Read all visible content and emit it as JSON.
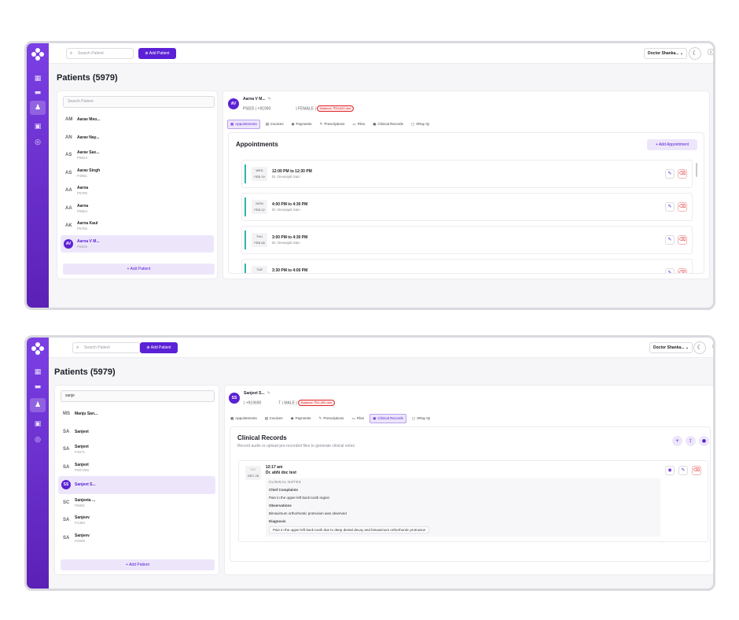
{
  "topbar": {
    "search_placeholder": "Search Patient",
    "add_patient_label": "Add Patient",
    "doctor_label": "Doctor Shanka...",
    "theme_icon": "moon-icon",
    "help_icon": "question-icon",
    "profile_icon": "user-icon"
  },
  "colors": {
    "brand": "#5b21d6",
    "sidebar": "#6d34e0",
    "danger": "#e02424",
    "appt_accent": "#2bb6b0"
  },
  "screen1": {
    "page_title": "Patients (5979)",
    "search_placeholder": "Search Patient",
    "patients": [
      {
        "initials": "AM",
        "name": "Aarav Meo...",
        "id": ""
      },
      {
        "initials": "AN",
        "name": "Aarav Nay...",
        "id": ""
      },
      {
        "initials": "AS",
        "name": "Aarav Sax...",
        "id": "P9624"
      },
      {
        "initials": "AS",
        "name": "Aarav Singh",
        "id": "P3861"
      },
      {
        "initials": "AA",
        "name": "Aarna",
        "id": "P6795"
      },
      {
        "initials": "AA",
        "name": "Aarna",
        "id": "P9664"
      },
      {
        "initials": "AK",
        "name": "Aarna Kaul",
        "id": "P6765"
      },
      {
        "initials": "AV",
        "name": "Aarna V M...",
        "id": "P5825",
        "selected": true
      }
    ],
    "add_patient_label": "+ Add Patient",
    "patient_header": {
      "initials": "AV",
      "name": "Aarna V M...",
      "info_left": "P5825 | +91990",
      "info_right": "| FEMALE |",
      "balance": "Balance: ₹33,600 due"
    },
    "tabs": [
      {
        "icon": "▦",
        "label": "Appointments",
        "active": true
      },
      {
        "icon": "▤",
        "label": "Invoices"
      },
      {
        "icon": "◉",
        "label": "Payments"
      },
      {
        "icon": "✎",
        "label": "Prescriptions"
      },
      {
        "icon": "▭",
        "label": "Files"
      },
      {
        "icon": "▣",
        "label": "Clinical Records"
      },
      {
        "icon": "▢",
        "label": "XRay IQ"
      }
    ],
    "section_title": "Appointments",
    "add_appointment_label": "+ Add Appointment",
    "appointments": [
      {
        "day": "WED",
        "date": "FEB 19",
        "time": "12:00 PM to 12:30 PM",
        "doctor": "Dr. Devanjali Sain"
      },
      {
        "day": "MON",
        "date": "FEB 12",
        "time": "4:00 PM to 4:30 PM",
        "doctor": "Dr. Devanjali Sain"
      },
      {
        "day": "THU",
        "date": "FEB 08",
        "time": "3:00 PM to 4:30 PM",
        "doctor": "Dr. Devanjali Sain"
      },
      {
        "day": "TUE",
        "date": "",
        "time": "3:30 PM to 4:00 PM",
        "doctor": ""
      }
    ]
  },
  "screen2": {
    "page_title": "Patients (5979)",
    "search_value": "sanje",
    "patients": [
      {
        "initials": "MS",
        "name": "Manju San...",
        "id": ""
      },
      {
        "initials": "SA",
        "name": "Sanjeet",
        "id": ""
      },
      {
        "initials": "SA",
        "name": "Sanjeet",
        "id": "P1671"
      },
      {
        "initials": "SA",
        "name": "Sanjeet",
        "id": "P007266"
      },
      {
        "initials": "SS",
        "name": "Sanjeet S...",
        "id": "",
        "selected": true
      },
      {
        "initials": "SC",
        "name": "Sanjeeta ...",
        "id": "P6881"
      },
      {
        "initials": "SA",
        "name": "Sanjeev",
        "id": "P1384"
      },
      {
        "initials": "SA",
        "name": "Sanjeev",
        "id": "P2909"
      }
    ],
    "add_patient_label": "+ Add Patient",
    "patient_header": {
      "initials": "SS",
      "name": "Sanjeet S...",
      "info_left": "| +919690",
      "info_right": "T | MALE |",
      "balance": "Balance: ₹41,390 due"
    },
    "tabs": [
      {
        "icon": "▦",
        "label": "Appointments"
      },
      {
        "icon": "▤",
        "label": "Invoices"
      },
      {
        "icon": "◉",
        "label": "Payments"
      },
      {
        "icon": "✎",
        "label": "Prescriptions"
      },
      {
        "icon": "▭",
        "label": "Files"
      },
      {
        "icon": "▣",
        "label": "Clinical Records",
        "active": true
      },
      {
        "icon": "▢",
        "label": "XRay IQ"
      }
    ],
    "section_title": "Clinical Records",
    "section_subtitle": "Record audio or upload pre-recorded files to generate clinical notes",
    "record": {
      "day": "SAT",
      "date": "DEC 28",
      "time": "12:17 am",
      "doctor": "Dr. abhi doc test",
      "heading": "CLINICAL NOTES",
      "chief_label": "Chief Complaints",
      "chief_text": "Pain in the upper left back tooth region",
      "obs_label": "Observations",
      "obs_text": "Bimaximum orthorhontic protrusion was observed",
      "diag_label": "Diagnosis",
      "diag_text": "Pain in the upper left back tooth due to deep dental decay and bimaximum orthorhontic protrusion"
    }
  }
}
